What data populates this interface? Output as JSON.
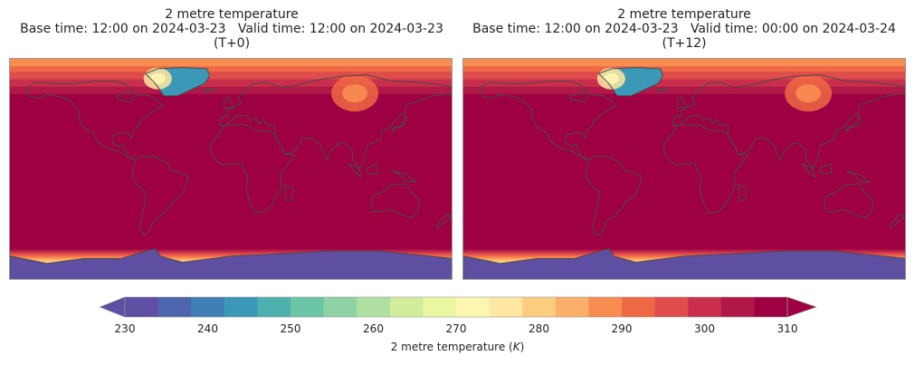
{
  "panels": [
    {
      "title_line1": "2 metre temperature",
      "title_line2": "Base time: 12:00 on 2024-03-23   Valid time: 12:00 on 2024-03-23",
      "title_line3": "(T+0)"
    },
    {
      "title_line1": "2 metre temperature",
      "title_line2": "Base time: 12:00 on 2024-03-23   Valid time: 00:00 on 2024-03-24",
      "title_line3": "(T+12)"
    }
  ],
  "colorbar": {
    "label_main": "2 metre temperature (",
    "label_unit": "K",
    "label_close": ")",
    "ticks": [
      "230",
      "240",
      "250",
      "260",
      "270",
      "280",
      "290",
      "300",
      "310"
    ],
    "min": 230,
    "max": 310,
    "step": 2,
    "colors": [
      "#5e4fa2",
      "#4d65ab",
      "#3f7fb6",
      "#3c98b7",
      "#4fb1ad",
      "#6cc5a4",
      "#8fd3a4",
      "#b0dfa2",
      "#d1ed9c",
      "#ecf7a2",
      "#fdf6b0",
      "#fee7a0",
      "#fdcd7f",
      "#fcaf69",
      "#f88d51",
      "#ef6944",
      "#de4d4b",
      "#c92f4c",
      "#b01848",
      "#9e0142"
    ]
  }
}
